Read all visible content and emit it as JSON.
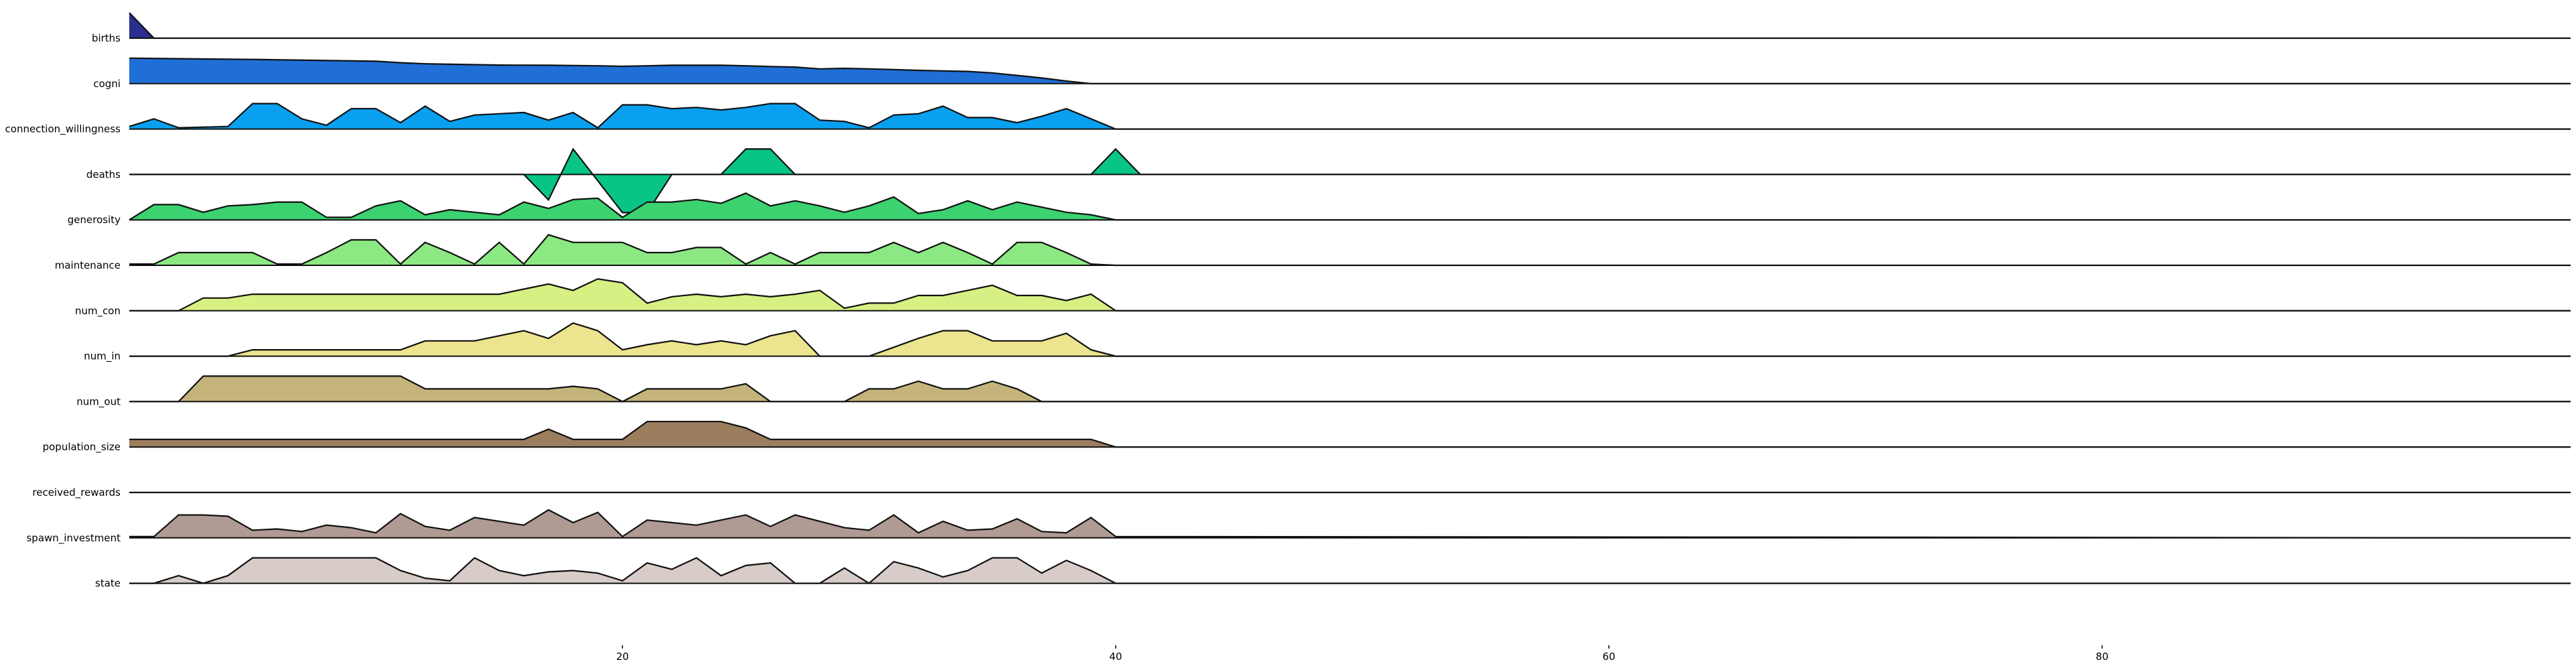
{
  "chart_data": {
    "type": "area",
    "title": "",
    "xlabel": "",
    "ylabel": "",
    "xlim": [
      0,
      99
    ],
    "xticks": [
      20,
      40,
      60,
      80
    ],
    "grid": false,
    "legend": "none",
    "series": [
      {
        "name": "births",
        "color": "#2a2e8c",
        "x": [
          0,
          1,
          99
        ],
        "values": [
          1.0,
          0.0,
          0.0
        ]
      },
      {
        "name": "cogni",
        "color": "#1f6fd6",
        "x": [
          0,
          2,
          5,
          10,
          11,
          12,
          13,
          15,
          17,
          19,
          20,
          21,
          22,
          24,
          25,
          26,
          27,
          28,
          29,
          30,
          31,
          32,
          34,
          35,
          36,
          37,
          38,
          39
        ],
        "values": [
          1.0,
          0.98,
          0.95,
          0.88,
          0.82,
          0.78,
          0.76,
          0.73,
          0.72,
          0.7,
          0.68,
          0.7,
          0.72,
          0.72,
          0.7,
          0.67,
          0.65,
          0.58,
          0.6,
          0.58,
          0.55,
          0.52,
          0.48,
          0.42,
          0.32,
          0.22,
          0.1,
          0.0
        ]
      },
      {
        "name": "connection_willingness",
        "color": "#0aa0f0",
        "x": [
          0,
          1,
          2,
          4,
          5,
          6,
          7,
          8,
          9,
          10,
          11,
          12,
          13,
          14,
          15,
          16,
          17,
          18,
          19,
          20,
          21,
          22,
          23,
          24,
          25,
          26,
          27,
          28,
          29,
          30,
          31,
          32,
          33,
          34,
          35,
          36,
          37,
          38,
          39,
          40
        ],
        "values": [
          0.1,
          0.4,
          0.05,
          0.1,
          1.0,
          1.0,
          0.4,
          0.15,
          0.8,
          0.8,
          0.25,
          0.9,
          0.3,
          0.55,
          0.6,
          0.65,
          0.35,
          0.65,
          0.05,
          0.95,
          0.95,
          0.8,
          0.85,
          0.75,
          0.85,
          1.0,
          1.0,
          0.35,
          0.3,
          0.05,
          0.55,
          0.6,
          0.9,
          0.45,
          0.45,
          0.25,
          0.5,
          0.8,
          0.4,
          0.0
        ]
      },
      {
        "name": "deaths",
        "color": "#08c587",
        "x": [
          0,
          16,
          17,
          18,
          20,
          21,
          22,
          24,
          25,
          26,
          27,
          39,
          40,
          41,
          99
        ],
        "values": [
          0,
          0,
          -1.0,
          1.0,
          -1.5,
          -1.5,
          0,
          0,
          1.0,
          1.0,
          0,
          0,
          1.0,
          0,
          0
        ]
      },
      {
        "name": "generosity",
        "color": "#3cd270",
        "x": [
          0,
          1,
          2,
          3,
          4,
          5,
          6,
          7,
          8,
          9,
          10,
          11,
          12,
          13,
          14,
          15,
          16,
          17,
          18,
          19,
          20,
          21,
          22,
          23,
          24,
          25,
          26,
          27,
          28,
          29,
          30,
          31,
          32,
          33,
          34,
          35,
          36,
          37,
          38,
          39,
          40
        ],
        "values": [
          0.0,
          0.6,
          0.6,
          0.3,
          0.55,
          0.6,
          0.7,
          0.7,
          0.1,
          0.1,
          0.55,
          0.75,
          0.2,
          0.4,
          0.3,
          0.2,
          0.7,
          0.45,
          0.8,
          0.85,
          0.1,
          0.7,
          0.7,
          0.8,
          0.65,
          1.05,
          0.55,
          0.75,
          0.55,
          0.3,
          0.55,
          0.9,
          0.25,
          0.4,
          0.75,
          0.4,
          0.7,
          0.5,
          0.3,
          0.2,
          0.0
        ]
      },
      {
        "name": "maintenance",
        "color": "#8ce882",
        "x": [
          0,
          1,
          2,
          3,
          4,
          5,
          6,
          7,
          8,
          9,
          10,
          11,
          12,
          13,
          14,
          15,
          16,
          17,
          18,
          19,
          20,
          21,
          22,
          23,
          24,
          25,
          26,
          27,
          28,
          29,
          30,
          31,
          32,
          33,
          34,
          35,
          36,
          37,
          38,
          39,
          40
        ],
        "values": [
          0.05,
          0.05,
          0.5,
          0.5,
          0.5,
          0.5,
          0.05,
          0.05,
          0.5,
          1.0,
          1.0,
          0.05,
          0.9,
          0.5,
          0.05,
          0.9,
          0.05,
          1.2,
          0.9,
          0.9,
          0.9,
          0.5,
          0.5,
          0.7,
          0.7,
          0.05,
          0.5,
          0.05,
          0.5,
          0.5,
          0.5,
          0.9,
          0.5,
          0.9,
          0.5,
          0.05,
          0.9,
          0.9,
          0.5,
          0.05,
          0.0
        ]
      },
      {
        "name": "num_con",
        "color": "#d6f084",
        "x": [
          0,
          1,
          2,
          3,
          4,
          5,
          6,
          7,
          8,
          9,
          10,
          11,
          12,
          13,
          14,
          15,
          16,
          17,
          18,
          19,
          20,
          21,
          22,
          23,
          24,
          25,
          26,
          27,
          28,
          29,
          30,
          31,
          32,
          33,
          34,
          35,
          36,
          37,
          38,
          39,
          40
        ],
        "values": [
          0.0,
          0.0,
          0.0,
          0.5,
          0.5,
          0.65,
          0.65,
          0.65,
          0.65,
          0.65,
          0.65,
          0.65,
          0.65,
          0.65,
          0.65,
          0.65,
          0.85,
          1.05,
          0.8,
          1.25,
          1.1,
          0.3,
          0.55,
          0.65,
          0.55,
          0.65,
          0.55,
          0.65,
          0.8,
          0.1,
          0.3,
          0.3,
          0.6,
          0.6,
          0.8,
          1.0,
          0.6,
          0.6,
          0.4,
          0.65,
          0.0
        ]
      },
      {
        "name": "num_in",
        "color": "#ece48e",
        "x": [
          0,
          1,
          2,
          3,
          4,
          5,
          6,
          7,
          8,
          9,
          10,
          11,
          12,
          13,
          14,
          15,
          16,
          17,
          18,
          19,
          20,
          21,
          22,
          23,
          24,
          25,
          26,
          27,
          28,
          29,
          30,
          31,
          32,
          33,
          34,
          35,
          36,
          37,
          38,
          39,
          40
        ],
        "values": [
          0.0,
          0.0,
          0.0,
          0.0,
          0.0,
          0.25,
          0.25,
          0.25,
          0.25,
          0.25,
          0.25,
          0.25,
          0.6,
          0.6,
          0.6,
          0.8,
          1.0,
          0.7,
          1.3,
          1.0,
          0.25,
          0.45,
          0.6,
          0.45,
          0.6,
          0.45,
          0.8,
          1.0,
          0.0,
          0.0,
          0.0,
          0.35,
          0.7,
          1.0,
          1.0,
          0.6,
          0.6,
          0.6,
          0.9,
          0.25,
          0.0
        ]
      },
      {
        "name": "num_out",
        "color": "#c4b47c",
        "x": [
          0,
          1,
          2,
          3,
          4,
          5,
          6,
          7,
          8,
          9,
          10,
          11,
          12,
          13,
          14,
          15,
          16,
          17,
          18,
          19,
          20,
          21,
          22,
          23,
          24,
          25,
          26,
          27,
          28,
          29,
          30,
          31,
          32,
          33,
          34,
          35,
          36,
          37
        ],
        "values": [
          0.0,
          0.0,
          0.0,
          1.0,
          1.0,
          1.0,
          1.0,
          1.0,
          1.0,
          1.0,
          1.0,
          1.0,
          0.5,
          0.5,
          0.5,
          0.5,
          0.5,
          0.5,
          0.6,
          0.5,
          0.0,
          0.5,
          0.5,
          0.5,
          0.5,
          0.7,
          0.0,
          0.0,
          0.0,
          0.0,
          0.5,
          0.5,
          0.8,
          0.5,
          0.5,
          0.8,
          0.5,
          0.0
        ]
      },
      {
        "name": "population_size",
        "color": "#9c7e5f",
        "x": [
          0,
          16,
          17,
          18,
          19,
          20,
          21,
          22,
          23,
          24,
          25,
          26,
          27,
          28,
          38,
          39,
          40
        ],
        "values": [
          0.3,
          0.3,
          0.7,
          0.3,
          0.3,
          0.3,
          1.0,
          1.0,
          1.0,
          1.0,
          0.75,
          0.3,
          0.3,
          0.3,
          0.3,
          0.3,
          0.0
        ]
      },
      {
        "name": "received_rewards",
        "color": "#b09a94",
        "x": [
          0,
          99
        ],
        "values": [
          0.0,
          0.0
        ]
      },
      {
        "name": "spawn_investment",
        "color": "#b09a94",
        "x": [
          0,
          1,
          2,
          3,
          4,
          5,
          6,
          7,
          8,
          9,
          10,
          11,
          12,
          13,
          14,
          15,
          16,
          17,
          18,
          19,
          20,
          21,
          22,
          23,
          24,
          25,
          26,
          27,
          28,
          29,
          30,
          31,
          32,
          33,
          34,
          35,
          36,
          37,
          38,
          39,
          40
        ],
        "values": [
          0.05,
          0.05,
          0.9,
          0.9,
          0.85,
          0.3,
          0.35,
          0.25,
          0.5,
          0.4,
          0.2,
          0.95,
          0.45,
          0.3,
          0.8,
          0.65,
          0.5,
          1.1,
          0.6,
          1.0,
          0.05,
          0.7,
          0.6,
          0.5,
          0.7,
          0.9,
          0.45,
          0.9,
          0.65,
          0.4,
          0.3,
          0.9,
          0.2,
          0.65,
          0.3,
          0.35,
          0.75,
          0.25,
          0.2,
          0.8,
          0.05
        ]
      },
      {
        "name": "state",
        "color": "#d8ccc8",
        "x": [
          0,
          1,
          2,
          3,
          4,
          5,
          6,
          7,
          8,
          9,
          10,
          11,
          12,
          13,
          14,
          15,
          16,
          17,
          18,
          19,
          20,
          21,
          22,
          23,
          24,
          25,
          26,
          27,
          28,
          29,
          30,
          31,
          32,
          33,
          34,
          35,
          36,
          37,
          38,
          39,
          40
        ],
        "values": [
          0.0,
          0.0,
          0.3,
          0.0,
          0.3,
          1.0,
          1.0,
          1.0,
          1.0,
          1.0,
          1.0,
          0.5,
          0.2,
          0.1,
          1.0,
          0.5,
          0.3,
          0.45,
          0.5,
          0.4,
          0.1,
          0.8,
          0.55,
          1.0,
          0.3,
          0.7,
          0.8,
          0.0,
          0.0,
          0.6,
          0.0,
          0.85,
          0.6,
          0.25,
          0.5,
          1.0,
          1.0,
          0.4,
          0.9,
          0.5,
          0.0
        ]
      }
    ]
  }
}
